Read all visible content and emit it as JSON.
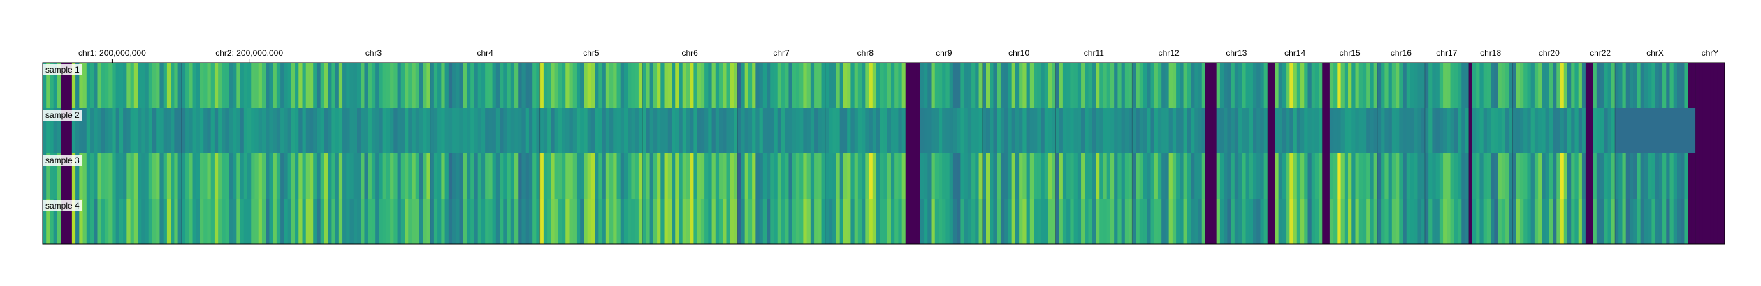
{
  "chart_data": {
    "type": "heatmap",
    "title": "",
    "xlabel": "",
    "ylabel": "",
    "colormap": "viridis",
    "color_range": [
      0,
      1
    ],
    "rows": [
      "sample 1",
      "sample 2",
      "sample 3",
      "sample 4"
    ],
    "x_tick_labels": [
      "chr1: 200,000,000",
      "chr2: 200,000,000"
    ],
    "chromosomes": [
      {
        "name": "chr1",
        "bins": 38,
        "start_level": 0.55,
        "base": 0.66,
        "amp": 0.2
      },
      {
        "name": "chr2",
        "bins": 37,
        "start_level": 0.52,
        "base": 0.64,
        "amp": 0.2
      },
      {
        "name": "chr3",
        "bins": 31,
        "start_level": 0.42,
        "base": 0.64,
        "amp": 0.19
      },
      {
        "name": "chr4",
        "bins": 30,
        "start_level": 0.46,
        "base": 0.56,
        "amp": 0.19
      },
      {
        "name": "chr5",
        "bins": 28,
        "start_level": 0.55,
        "base": 0.66,
        "amp": 0.2
      },
      {
        "name": "chr6",
        "bins": 26,
        "start_level": 0.6,
        "base": 0.67,
        "amp": 0.2
      },
      {
        "name": "chr7",
        "bins": 24,
        "start_level": 0.32,
        "base": 0.63,
        "amp": 0.2
      },
      {
        "name": "chr8",
        "bins": 22,
        "start_level": 0.55,
        "base": 0.64,
        "amp": 0.2
      },
      {
        "name": "chr9",
        "bins": 21,
        "start_level": 0.0,
        "base": 0.58,
        "amp": 0.2
      },
      {
        "name": "chr10",
        "bins": 20,
        "start_level": 0.45,
        "base": 0.62,
        "amp": 0.19
      },
      {
        "name": "chr11",
        "bins": 21,
        "start_level": 0.4,
        "base": 0.62,
        "amp": 0.19
      },
      {
        "name": "chr12",
        "bins": 20,
        "start_level": 0.45,
        "base": 0.62,
        "amp": 0.19
      },
      {
        "name": "chr13",
        "bins": 17,
        "start_level": 0.0,
        "base": 0.56,
        "amp": 0.18
      },
      {
        "name": "chr14",
        "bins": 15,
        "start_level": 0.0,
        "base": 0.63,
        "amp": 0.2
      },
      {
        "name": "chr15",
        "bins": 15,
        "start_level": 0.0,
        "base": 0.63,
        "amp": 0.2
      },
      {
        "name": "chr16",
        "bins": 13,
        "start_level": 0.4,
        "base": 0.6,
        "amp": 0.18
      },
      {
        "name": "chr17",
        "bins": 12,
        "start_level": 0.4,
        "base": 0.6,
        "amp": 0.18
      },
      {
        "name": "chr18",
        "bins": 12,
        "start_level": 0.0,
        "base": 0.58,
        "amp": 0.18
      },
      {
        "name": "chr20",
        "bins": 20,
        "start_level": 0.42,
        "base": 0.6,
        "amp": 0.18
      },
      {
        "name": "chr22",
        "bins": 8,
        "start_level": 0.0,
        "base": 0.56,
        "amp": 0.18
      },
      {
        "name": "chrX",
        "bins": 22,
        "start_level": 0.45,
        "base": 0.55,
        "amp": 0.15
      },
      {
        "name": "chrY",
        "bins": 8,
        "start_level": 0.0,
        "base": 0.0,
        "amp": 0.0
      }
    ],
    "dark_bands": [
      {
        "chr": "chr1",
        "from": 5,
        "to": 7,
        "value": 0.0
      },
      {
        "chr": "chr9",
        "from": 0,
        "to": 3,
        "value": 0.0
      },
      {
        "chr": "chr13",
        "from": 0,
        "to": 2,
        "value": 0.0
      },
      {
        "chr": "chr14",
        "from": 0,
        "to": 1,
        "value": 0.0
      },
      {
        "chr": "chr15",
        "from": 0,
        "to": 1,
        "value": 0.0
      },
      {
        "chr": "chr18",
        "from": 0,
        "to": 0,
        "value": 0.0
      },
      {
        "chr": "chr22",
        "from": 0,
        "to": 1,
        "value": 0.0
      },
      {
        "chr": "chrX",
        "from": 20,
        "to": 21,
        "value": 0.0
      }
    ],
    "bright_bands": [
      {
        "chr": "chr5",
        "at": 0,
        "value": 0.92
      },
      {
        "chr": "chr6",
        "at": 13,
        "value": 0.9
      },
      {
        "chr": "chr8",
        "at": 12,
        "value": 0.92
      },
      {
        "chr": "chr14",
        "at": 6,
        "value": 0.95
      },
      {
        "chr": "chr15",
        "at": 4,
        "value": 0.95
      },
      {
        "chr": "chr20",
        "at": 13,
        "value": 0.95
      }
    ],
    "sample2_flat": {
      "base": 0.5,
      "amp": 0.08
    },
    "sample2_chrX_level": 0.36,
    "chrY_level": 0.0,
    "grid": false,
    "legend": "none"
  }
}
